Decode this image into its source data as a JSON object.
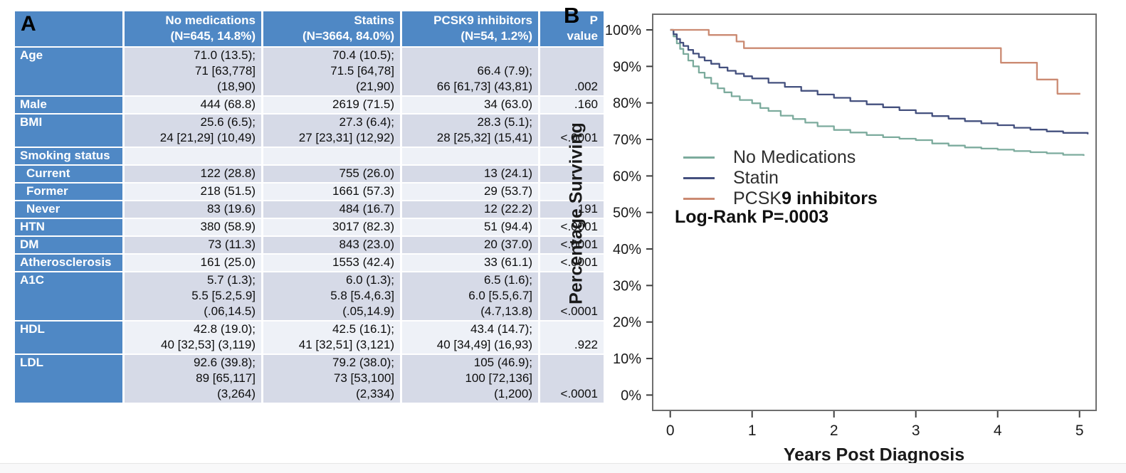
{
  "panel_a": {
    "label": "A",
    "table": {
      "col_headers": [
        "No medications\n(N=645, 14.8%)",
        "Statins\n(N=3664, 84.0%)",
        "PCSK9 inhibitors\n(N=54, 1.2%)",
        "P\nvalue"
      ],
      "rows": [
        {
          "label": "Age",
          "indent": false,
          "shade": "dark",
          "cells": [
            "71.0 (13.5);\n71 [63,778]\n(18,90)",
            "70.4 (10.5);\n71.5 [64,78]\n(21,90)",
            "66.4 (7.9);\n66 [61,73] (43,81)",
            ".002"
          ]
        },
        {
          "label": "Male",
          "indent": false,
          "shade": "light",
          "cells": [
            "444 (68.8)",
            "2619 (71.5)",
            "34 (63.0)",
            ".160"
          ]
        },
        {
          "label": "BMI",
          "indent": false,
          "shade": "dark",
          "cells": [
            "25.6 (6.5);\n24 [21,29] (10,49)",
            "27.3 (6.4);\n27 [23,31] (12,92)",
            "28.3 (5.1);\n28 [25,32] (15,41)",
            "<.0001"
          ]
        },
        {
          "label": "Smoking status",
          "indent": false,
          "shade": "light",
          "cells": [
            "",
            "",
            "",
            ""
          ]
        },
        {
          "label": "Current",
          "indent": true,
          "shade": "dark",
          "cells": [
            "122 (28.8)",
            "755 (26.0)",
            "13 (24.1)",
            ""
          ]
        },
        {
          "label": "Former",
          "indent": true,
          "shade": "light",
          "cells": [
            "218 (51.5)",
            "1661 (57.3)",
            "29 (53.7)",
            ""
          ]
        },
        {
          "label": "Never",
          "indent": true,
          "shade": "dark",
          "cells": [
            "83 (19.6)",
            "484 (16.7)",
            "12 (22.2)",
            ".191"
          ]
        },
        {
          "label": "HTN",
          "indent": false,
          "shade": "light",
          "cells": [
            "380 (58.9)",
            "3017 (82.3)",
            "51 (94.4)",
            "<.0001"
          ]
        },
        {
          "label": "DM",
          "indent": false,
          "shade": "dark",
          "cells": [
            "73 (11.3)",
            "843 (23.0)",
            "20 (37.0)",
            "<.0001"
          ]
        },
        {
          "label": "Atherosclerosis",
          "indent": false,
          "shade": "light",
          "cells": [
            "161 (25.0)",
            "1553 (42.4)",
            "33 (61.1)",
            "<.0001"
          ]
        },
        {
          "label": "A1C",
          "indent": false,
          "shade": "dark",
          "cells": [
            "5.7 (1.3);\n5.5 [5.2,5.9]\n(.06,14.5)",
            "6.0 (1.3);\n5.8 [5.4,6.3]\n(.05,14.9)",
            "6.5 (1.6);\n6.0 [5.5,6.7]\n(4.7,13.8)",
            "<.0001"
          ]
        },
        {
          "label": "HDL",
          "indent": false,
          "shade": "light",
          "cells": [
            "42.8 (19.0);\n40 [32,53] (3,119)",
            "42.5 (16.1);\n41 [32,51] (3,121)",
            "43.4 (14.7);\n40 [34,49] (16,93)",
            ".922"
          ]
        },
        {
          "label": "LDL",
          "indent": false,
          "shade": "dark",
          "cells": [
            "92.6 (39.8);\n89 [65,117]\n(3,264)",
            "79.2 (38.0);\n73 [53,100]\n(2,334)",
            "105 (46.9);\n100 [72,136]\n(1,200)",
            "<.0001"
          ]
        }
      ]
    },
    "colors": {
      "header_blue": "#4f88c5",
      "stripe_dark": "#d6dae7",
      "stripe_light": "#eef1f7"
    }
  },
  "panel_b_label": "B",
  "chart_data": {
    "type": "line",
    "subtype": "kaplan-meier-step",
    "xlabel": "Years Post Diagnosis",
    "ylabel": "Percentage Surviving",
    "x_ticks": [
      0,
      1,
      2,
      3,
      4,
      5
    ],
    "y_ticks": [
      0,
      10,
      20,
      30,
      40,
      50,
      60,
      70,
      80,
      90,
      100
    ],
    "y_tick_suffix": "%",
    "xlim": [
      0,
      5.2
    ],
    "ylim": [
      0,
      100
    ],
    "grid": false,
    "legend_position": "inside-left-middle",
    "annotation": "Log-Rank P=.0003",
    "legend": [
      {
        "label": "No Medications",
        "color": "#7cab9d"
      },
      {
        "label": "Statin",
        "color": "#44507e"
      },
      {
        "label_regular": "PCSK",
        "label_bold": "9 inhibitors",
        "color": "#cb8a72"
      }
    ],
    "series": [
      {
        "name": "No Medications",
        "color": "#7cab9d",
        "points": [
          [
            0,
            100
          ],
          [
            0.04,
            98.2
          ],
          [
            0.08,
            96.3
          ],
          [
            0.12,
            94.8
          ],
          [
            0.16,
            93.4
          ],
          [
            0.22,
            91.6
          ],
          [
            0.28,
            90.0
          ],
          [
            0.35,
            88.3
          ],
          [
            0.42,
            86.9
          ],
          [
            0.5,
            85.3
          ],
          [
            0.58,
            84.0
          ],
          [
            0.66,
            82.9
          ],
          [
            0.75,
            81.8
          ],
          [
            0.85,
            80.8
          ],
          [
            1.0,
            79.9
          ],
          [
            1.1,
            78.6
          ],
          [
            1.2,
            77.8
          ],
          [
            1.35,
            76.5
          ],
          [
            1.5,
            75.6
          ],
          [
            1.65,
            74.6
          ],
          [
            1.8,
            73.6
          ],
          [
            2.0,
            72.6
          ],
          [
            2.2,
            71.9
          ],
          [
            2.4,
            71.2
          ],
          [
            2.6,
            70.6
          ],
          [
            2.8,
            70.2
          ],
          [
            3.0,
            69.8
          ],
          [
            3.2,
            68.9
          ],
          [
            3.4,
            68.3
          ],
          [
            3.6,
            67.8
          ],
          [
            3.8,
            67.5
          ],
          [
            4.0,
            67.2
          ],
          [
            4.2,
            66.8
          ],
          [
            4.4,
            66.5
          ],
          [
            4.6,
            66.2
          ],
          [
            4.8,
            65.8
          ],
          [
            5.05,
            65.5
          ]
        ]
      },
      {
        "name": "Statin",
        "color": "#44507e",
        "points": [
          [
            0,
            100
          ],
          [
            0.04,
            98.8
          ],
          [
            0.08,
            97.5
          ],
          [
            0.12,
            96.5
          ],
          [
            0.16,
            95.6
          ],
          [
            0.22,
            94.5
          ],
          [
            0.28,
            93.5
          ],
          [
            0.35,
            92.5
          ],
          [
            0.42,
            91.6
          ],
          [
            0.5,
            90.7
          ],
          [
            0.6,
            89.7
          ],
          [
            0.7,
            88.8
          ],
          [
            0.8,
            88.0
          ],
          [
            0.9,
            87.3
          ],
          [
            1.0,
            86.7
          ],
          [
            1.2,
            85.5
          ],
          [
            1.4,
            84.4
          ],
          [
            1.6,
            83.3
          ],
          [
            1.8,
            82.3
          ],
          [
            2.0,
            81.4
          ],
          [
            2.2,
            80.5
          ],
          [
            2.4,
            79.6
          ],
          [
            2.6,
            78.8
          ],
          [
            2.8,
            78.0
          ],
          [
            3.0,
            77.2
          ],
          [
            3.2,
            76.4
          ],
          [
            3.4,
            75.7
          ],
          [
            3.6,
            75.0
          ],
          [
            3.8,
            74.4
          ],
          [
            4.0,
            73.9
          ],
          [
            4.2,
            73.2
          ],
          [
            4.4,
            72.7
          ],
          [
            4.6,
            72.2
          ],
          [
            4.8,
            71.8
          ],
          [
            5.1,
            71.4
          ]
        ]
      },
      {
        "name": "PCSK9 inhibitors",
        "color": "#cb8a72",
        "points": [
          [
            0,
            100
          ],
          [
            0.47,
            100
          ],
          [
            0.47,
            98.6
          ],
          [
            0.81,
            98.6
          ],
          [
            0.81,
            96.8
          ],
          [
            0.9,
            96.8
          ],
          [
            0.9,
            95.0
          ],
          [
            4.04,
            95.0
          ],
          [
            4.04,
            91.0
          ],
          [
            4.48,
            91.0
          ],
          [
            4.48,
            86.4
          ],
          [
            4.73,
            86.4
          ],
          [
            4.73,
            82.5
          ],
          [
            5.01,
            82.5
          ]
        ]
      }
    ]
  }
}
